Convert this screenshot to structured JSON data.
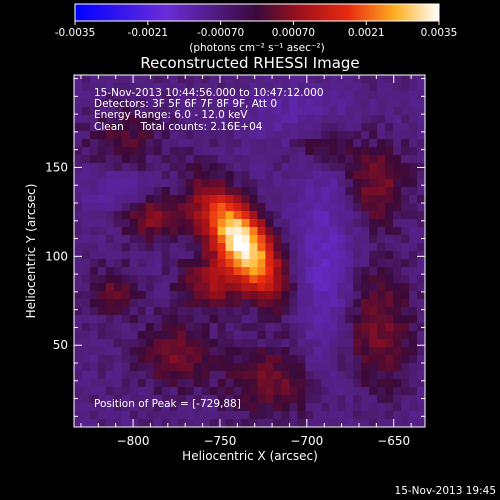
{
  "colorbar": {
    "ticks": [
      "-0.0035",
      "-0.0021",
      "-0.00070",
      "0.00070",
      "0.0021",
      "0.0035"
    ],
    "unit_label": "(photons cm⁻² s⁻¹ asec⁻²)",
    "range": [
      -0.0035,
      0.0035
    ]
  },
  "footer": {
    "timestamp": "15-Nov-2013 19:45"
  },
  "chart_data": {
    "type": "heatmap",
    "title": "Reconstructed RHESSI Image",
    "xlabel": "Heliocentric X (arcsec)",
    "ylabel": "Heliocentric Y (arcsec)",
    "xlim": [
      -834,
      -632
    ],
    "ylim": [
      4,
      202
    ],
    "xticks": [
      -800,
      -750,
      -700,
      -650
    ],
    "yticks": [
      50,
      100,
      150
    ],
    "xtick_labels": [
      "−800",
      "−750",
      "−700",
      "−650"
    ],
    "ytick_labels": [
      "50",
      "100",
      "150"
    ],
    "info_lines": [
      "15-Nov-2013 10:44:56.000 to 10:47:12.000",
      "Detectors: 3F 5F 6F 7F 8F 9F, Att 0",
      "Energy Range: 6.0 - 12.0 keV",
      "Clean     Total counts: 2.16E+04"
    ],
    "annotation": "Position of Peak = [-729,88]",
    "peak": [
      -729,
      88
    ],
    "sources": [
      {
        "x": -738,
        "y": 108,
        "sx": 10,
        "sy": 22,
        "amp": 0.004,
        "angle": 35
      },
      {
        "x": -755,
        "y": 85,
        "sx": 12,
        "sy": 10,
        "amp": 0.0012,
        "angle": 0
      },
      {
        "x": -790,
        "y": 122,
        "sx": 14,
        "sy": 9,
        "amp": 0.0011,
        "angle": 0
      },
      {
        "x": -810,
        "y": 80,
        "sx": 10,
        "sy": 10,
        "amp": 0.0008,
        "angle": 0
      },
      {
        "x": -775,
        "y": 45,
        "sx": 14,
        "sy": 12,
        "amp": 0.001,
        "angle": 0
      },
      {
        "x": -720,
        "y": 30,
        "sx": 18,
        "sy": 14,
        "amp": 0.0009,
        "angle": 0
      },
      {
        "x": -660,
        "y": 60,
        "sx": 14,
        "sy": 22,
        "amp": 0.001,
        "angle": 0
      },
      {
        "x": -660,
        "y": 140,
        "sx": 12,
        "sy": 16,
        "amp": 0.001,
        "angle": 0
      },
      {
        "x": -690,
        "y": 165,
        "sx": 12,
        "sy": 10,
        "amp": 0.0008,
        "angle": 0
      },
      {
        "x": -805,
        "y": 165,
        "sx": 14,
        "sy": 12,
        "amp": 0.0007,
        "angle": 0
      },
      {
        "x": -690,
        "y": 95,
        "sx": 12,
        "sy": 40,
        "amp": -0.0009,
        "angle": 0
      },
      {
        "x": -705,
        "y": 180,
        "sx": 22,
        "sy": 10,
        "amp": -0.0006,
        "angle": 0
      },
      {
        "x": -810,
        "y": 135,
        "sx": 12,
        "sy": 12,
        "amp": -0.0006,
        "angle": 0
      }
    ]
  }
}
